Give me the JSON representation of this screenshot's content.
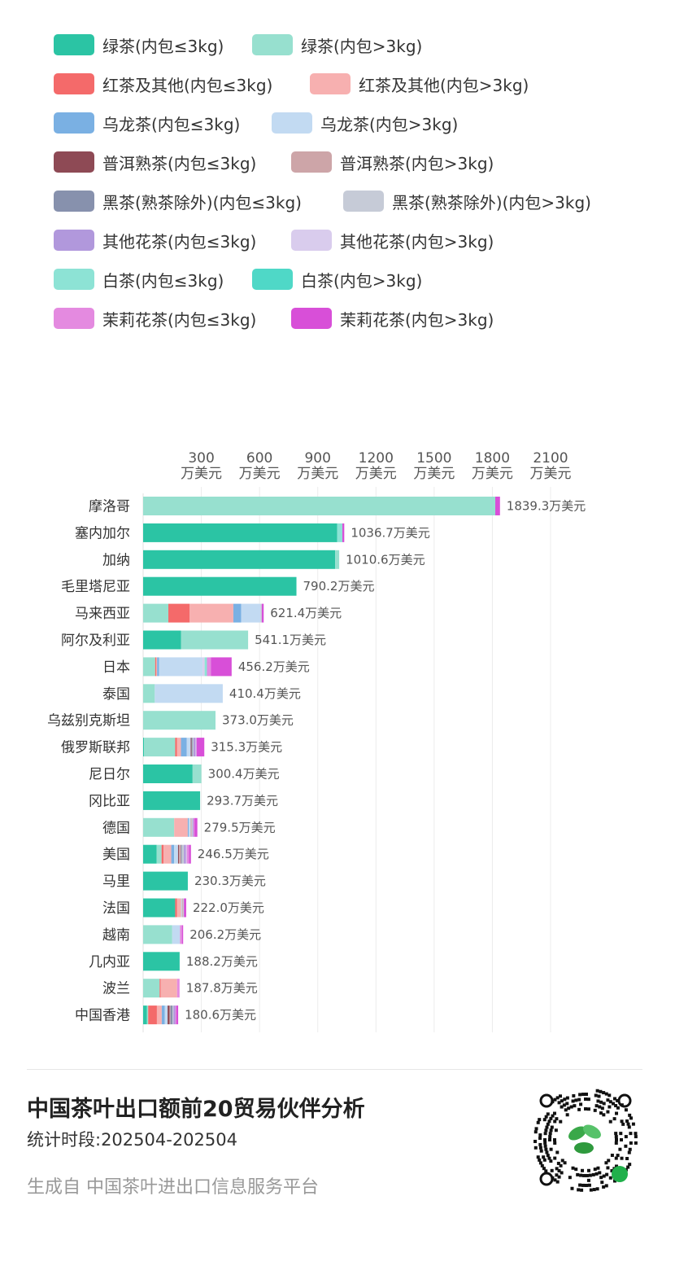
{
  "legend": [
    {
      "label": "绿茶(内包≤3kg)",
      "color": "#2bc4a4"
    },
    {
      "label": "绿茶(内包>3kg)",
      "color": "#97e0cf"
    },
    {
      "label": "红茶及其他(内包≤3kg)",
      "color": "#f46a6a"
    },
    {
      "label": "红茶及其他(内包>3kg)",
      "color": "#f7b0b0"
    },
    {
      "label": "乌龙茶(内包≤3kg)",
      "color": "#7ab0e3"
    },
    {
      "label": "乌龙茶(内包>3kg)",
      "color": "#c2daf2"
    },
    {
      "label": "普洱熟茶(内包≤3kg)",
      "color": "#8e4a55"
    },
    {
      "label": "普洱熟茶(内包>3kg)",
      "color": "#cda5a8"
    },
    {
      "label": "黑茶(熟茶除外)(内包≤3kg)",
      "color": "#8791ad"
    },
    {
      "label": "黑茶(熟茶除外)(内包>3kg)",
      "color": "#c6cbd7"
    },
    {
      "label": "其他花茶(内包≤3kg)",
      "color": "#b198dc"
    },
    {
      "label": "其他花茶(内包>3kg)",
      "color": "#d9cced"
    },
    {
      "label": "白茶(内包≤3kg)",
      "color": "#8de3d5"
    },
    {
      "label": "白茶(内包>3kg)",
      "color": "#4fd8c7"
    },
    {
      "label": "茉莉花茶(内包≤3kg)",
      "color": "#e48ae0"
    },
    {
      "label": "茉莉花茶(内包>3kg)",
      "color": "#d84fd8"
    }
  ],
  "chart_data": {
    "type": "bar",
    "orientation": "horizontal",
    "stacked": true,
    "unit": "万美元",
    "xlim": [
      0,
      2100
    ],
    "xticks": [
      300,
      600,
      900,
      1200,
      1500,
      1800,
      2100
    ],
    "xtick_labels": [
      {
        "value": "300",
        "unit": "万美元"
      },
      {
        "value": "600",
        "unit": "万美元"
      },
      {
        "value": "900",
        "unit": "万美元"
      },
      {
        "value": "1200",
        "unit": "万美元"
      },
      {
        "value": "1500",
        "unit": "万美元"
      },
      {
        "value": "1800",
        "unit": "万美元"
      },
      {
        "value": "2100",
        "unit": "万美元"
      }
    ],
    "grid": true,
    "categories": [
      "摩洛哥",
      "塞内加尔",
      "加纳",
      "毛里塔尼亚",
      "马来西亚",
      "阿尔及利亚",
      "日本",
      "泰国",
      "乌兹别克斯坦",
      "俄罗斯联邦",
      "尼日尔",
      "冈比亚",
      "德国",
      "美国",
      "马里",
      "法国",
      "越南",
      "几内亚",
      "波兰",
      "中国香港"
    ],
    "totals": [
      1839.3,
      1036.7,
      1010.6,
      790.2,
      621.4,
      541.1,
      456.2,
      410.4,
      373.0,
      315.3,
      300.4,
      293.7,
      279.5,
      246.5,
      230.3,
      222.0,
      206.2,
      188.2,
      187.8,
      180.6
    ],
    "total_labels": [
      "1839.3万美元",
      "1036.7万美元",
      "1010.6万美元",
      "790.2万美元",
      "621.4万美元",
      "541.1万美元",
      "456.2万美元",
      "410.4万美元",
      "373.0万美元",
      "315.3万美元",
      "300.4万美元",
      "293.7万美元",
      "279.5万美元",
      "246.5万美元",
      "230.3万美元",
      "222.0万美元",
      "206.2万美元",
      "188.2万美元",
      "187.8万美元",
      "180.6万美元"
    ],
    "series": [
      {
        "name": "绿茶(内包≤3kg)",
        "color": "#2bc4a4",
        "values": [
          0,
          1000,
          990,
          790.2,
          0,
          195,
          0,
          0,
          0,
          5,
          255,
          293.7,
          0,
          70,
          230.3,
          165,
          0,
          188.2,
          0,
          20
        ]
      },
      {
        "name": "绿茶(内包>3kg)",
        "color": "#97e0cf",
        "values": [
          1815,
          0,
          20.6,
          0,
          130,
          346.1,
          62,
          60,
          373,
          160,
          45.4,
          0,
          160,
          25,
          0,
          0,
          150,
          0,
          85,
          6
        ]
      },
      {
        "name": "红茶及其他(内包≤3kg)",
        "color": "#f46a6a",
        "values": [
          0,
          0,
          0,
          0,
          110,
          0,
          5,
          0,
          0,
          10,
          0,
          0,
          0,
          10,
          0,
          10,
          0,
          0,
          5,
          45
        ]
      },
      {
        "name": "红茶及其他(内包>3kg)",
        "color": "#f7b0b0",
        "values": [
          0,
          0,
          0,
          0,
          225,
          0,
          5,
          0,
          0,
          20,
          0,
          0,
          70,
          40,
          0,
          20,
          0,
          0,
          85,
          25
        ]
      },
      {
        "name": "乌龙茶(内包≤3kg)",
        "color": "#7ab0e3",
        "values": [
          0,
          0,
          0,
          0,
          40,
          0,
          10,
          0,
          0,
          30,
          0,
          0,
          5,
          15,
          0,
          0,
          0,
          0,
          0,
          15
        ]
      },
      {
        "name": "乌龙茶(内包>3kg)",
        "color": "#c2daf2",
        "values": [
          0,
          0,
          0,
          0,
          100,
          0,
          225,
          350.4,
          0,
          20,
          0,
          0,
          10,
          20,
          0,
          5,
          40,
          0,
          0,
          15
        ]
      },
      {
        "name": "普洱熟茶(内包≤3kg)",
        "color": "#8e4a55",
        "values": [
          0,
          0,
          0,
          0,
          0,
          0,
          0,
          0,
          0,
          5,
          0,
          0,
          0,
          5,
          0,
          0,
          0,
          0,
          0,
          10
        ]
      },
      {
        "name": "普洱熟茶(内包>3kg)",
        "color": "#cda5a8",
        "values": [
          0,
          0,
          0,
          0,
          0,
          0,
          0,
          0,
          0,
          0,
          0,
          0,
          5,
          10,
          0,
          5,
          0,
          0,
          0,
          5
        ]
      },
      {
        "name": "黑茶(熟茶除外)(内包≤3kg)",
        "color": "#8791ad",
        "values": [
          0,
          0,
          0,
          0,
          0,
          0,
          0,
          0,
          0,
          5,
          0,
          0,
          0,
          5,
          0,
          0,
          0,
          0,
          0,
          10
        ]
      },
      {
        "name": "黑茶(熟茶除外)(内包>3kg)",
        "color": "#c6cbd7",
        "values": [
          0,
          0,
          0,
          0,
          6.4,
          0,
          0,
          0,
          0,
          5,
          0,
          0,
          5,
          10,
          0,
          5,
          0,
          0,
          0,
          5
        ]
      },
      {
        "name": "其他花茶(内包≤3kg)",
        "color": "#b198dc",
        "values": [
          0,
          0,
          0,
          0,
          0,
          0,
          0,
          0,
          0,
          10,
          0,
          0,
          4.5,
          10,
          0,
          0,
          0,
          0,
          0,
          9.6
        ]
      },
      {
        "name": "其他花茶(内包>3kg)",
        "color": "#d9cced",
        "values": [
          0,
          0,
          0,
          0,
          0,
          0,
          10,
          0,
          0,
          5,
          0,
          0,
          0,
          5,
          0,
          0,
          0,
          0,
          0,
          0
        ]
      },
      {
        "name": "白茶(内包≤3kg)",
        "color": "#8de3d5",
        "values": [
          0,
          26.7,
          0,
          0,
          0,
          0,
          12,
          0,
          0,
          0,
          0,
          0,
          0,
          0,
          0,
          0,
          0,
          0,
          0,
          0
        ]
      },
      {
        "name": "白茶(内包>3kg)",
        "color": "#4fd8c7",
        "values": [
          0,
          0,
          0,
          0,
          0,
          0,
          0,
          0,
          0,
          0,
          0,
          0,
          0,
          0,
          0,
          0,
          0,
          0,
          0,
          0
        ]
      },
      {
        "name": "茉莉花茶(内包≤3kg)",
        "color": "#e48ae0",
        "values": [
          0,
          0,
          0,
          0,
          0,
          0,
          20,
          0,
          0,
          0,
          0,
          0,
          5,
          11.5,
          0,
          0,
          10,
          0,
          12.8,
          5
        ]
      },
      {
        "name": "茉莉花茶(内包>3kg)",
        "color": "#d84fd8",
        "values": [
          24.3,
          10,
          0,
          0,
          10,
          0,
          107.2,
          0,
          0,
          40.3,
          0,
          0,
          15,
          10,
          0,
          12,
          6.2,
          0,
          0,
          10
        ]
      }
    ]
  },
  "footer": {
    "title": "中国茶叶出口额前20贸易伙伴分析",
    "period": "统计时段:202504-202504",
    "source": "生成自 中国茶叶进出口信息服务平台"
  }
}
